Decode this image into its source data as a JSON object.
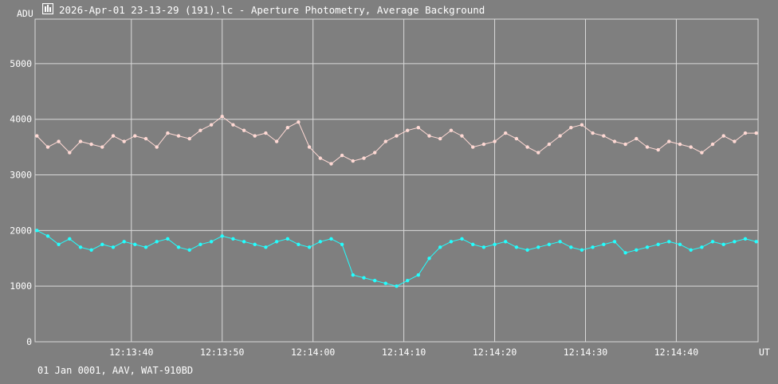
{
  "window": {
    "title": "2026-Apr-01 23-13-29 (191).lc - Aperture Photometry, Average Background",
    "icon": "lightcurve-app-icon"
  },
  "footer": {
    "info": "01 Jan 0001, AAV, WAT-910BD"
  },
  "colors": {
    "background": "#7f7f7f",
    "grid": "#d9d9d9",
    "series_pink": "#ffd9d4",
    "series_cyan": "#22ffff",
    "text": "#ffffff"
  },
  "chart_data": {
    "type": "line",
    "title": "",
    "ylabel": "ADU",
    "xlabel": "UT",
    "ylim": [
      0,
      5800
    ],
    "y_ticks": [
      0,
      1000,
      2000,
      3000,
      4000,
      5000
    ],
    "y_tick_labels": [
      "0",
      "1000",
      "2000",
      "3000",
      "4000",
      "5000"
    ],
    "xlim": [
      29.4,
      109.0
    ],
    "x_ticks": [
      40,
      50,
      60,
      70,
      80,
      90,
      100
    ],
    "x_tick_labels": [
      "12:13:40",
      "12:13:50",
      "12:14:00",
      "12:14:10",
      "12:14:20",
      "12:14:30",
      "12:14:40"
    ],
    "x_units_note": "seconds after 12:13:00 UT",
    "grid": true,
    "markers": true,
    "series": [
      {
        "color": "#ffd9d4",
        "x": [
          29.6,
          30.8,
          32.0,
          33.2,
          34.4,
          35.6,
          36.8,
          38.0,
          39.2,
          40.4,
          41.6,
          42.8,
          44.0,
          45.2,
          46.4,
          47.6,
          48.8,
          50.0,
          51.2,
          52.4,
          53.6,
          54.8,
          56.0,
          57.2,
          58.4,
          59.6,
          60.8,
          62.0,
          63.2,
          64.4,
          65.6,
          66.8,
          68.0,
          69.2,
          70.4,
          71.6,
          72.8,
          74.0,
          75.2,
          76.4,
          77.6,
          78.8,
          80.0,
          81.2,
          82.4,
          83.6,
          84.8,
          86.0,
          87.2,
          88.4,
          89.6,
          90.8,
          92.0,
          93.2,
          94.4,
          95.6,
          96.8,
          98.0,
          99.2,
          100.4,
          101.6,
          102.8,
          104.0,
          105.2,
          106.4,
          107.6,
          108.8
        ],
        "values": [
          3700,
          3500,
          3600,
          3400,
          3600,
          3550,
          3500,
          3700,
          3600,
          3700,
          3650,
          3500,
          3750,
          3700,
          3650,
          3800,
          3900,
          4050,
          3900,
          3800,
          3700,
          3750,
          3600,
          3850,
          3950,
          3500,
          3300,
          3200,
          3350,
          3250,
          3300,
          3400,
          3600,
          3700,
          3800,
          3850,
          3700,
          3650,
          3800,
          3700,
          3500,
          3550,
          3600,
          3750,
          3650,
          3500,
          3400,
          3550,
          3700,
          3850,
          3900,
          3750,
          3700,
          3600,
          3550,
          3650,
          3500,
          3450,
          3600,
          3550,
          3500,
          3400,
          3550,
          3700,
          3600,
          3750,
          3750
        ]
      },
      {
        "color": "#22ffff",
        "x": [
          29.6,
          30.8,
          32.0,
          33.2,
          34.4,
          35.6,
          36.8,
          38.0,
          39.2,
          40.4,
          41.6,
          42.8,
          44.0,
          45.2,
          46.4,
          47.6,
          48.8,
          50.0,
          51.2,
          52.4,
          53.6,
          54.8,
          56.0,
          57.2,
          58.4,
          59.6,
          60.8,
          62.0,
          63.2,
          64.4,
          65.6,
          66.8,
          68.0,
          69.2,
          70.4,
          71.6,
          72.8,
          74.0,
          75.2,
          76.4,
          77.6,
          78.8,
          80.0,
          81.2,
          82.4,
          83.6,
          84.8,
          86.0,
          87.2,
          88.4,
          89.6,
          90.8,
          92.0,
          93.2,
          94.4,
          95.6,
          96.8,
          98.0,
          99.2,
          100.4,
          101.6,
          102.8,
          104.0,
          105.2,
          106.4,
          107.6,
          108.8
        ],
        "values": [
          2000,
          1900,
          1750,
          1850,
          1700,
          1650,
          1750,
          1700,
          1800,
          1750,
          1700,
          1800,
          1850,
          1700,
          1650,
          1750,
          1800,
          1900,
          1850,
          1800,
          1750,
          1700,
          1800,
          1850,
          1750,
          1700,
          1800,
          1850,
          1750,
          1200,
          1150,
          1100,
          1050,
          1000,
          1100,
          1200,
          1500,
          1700,
          1800,
          1850,
          1750,
          1700,
          1750,
          1800,
          1700,
          1650,
          1700,
          1750,
          1800,
          1700,
          1650,
          1700,
          1750,
          1800,
          1600,
          1650,
          1700,
          1750,
          1800,
          1750,
          1650,
          1700,
          1800,
          1750,
          1800,
          1850,
          1800
        ]
      }
    ]
  }
}
